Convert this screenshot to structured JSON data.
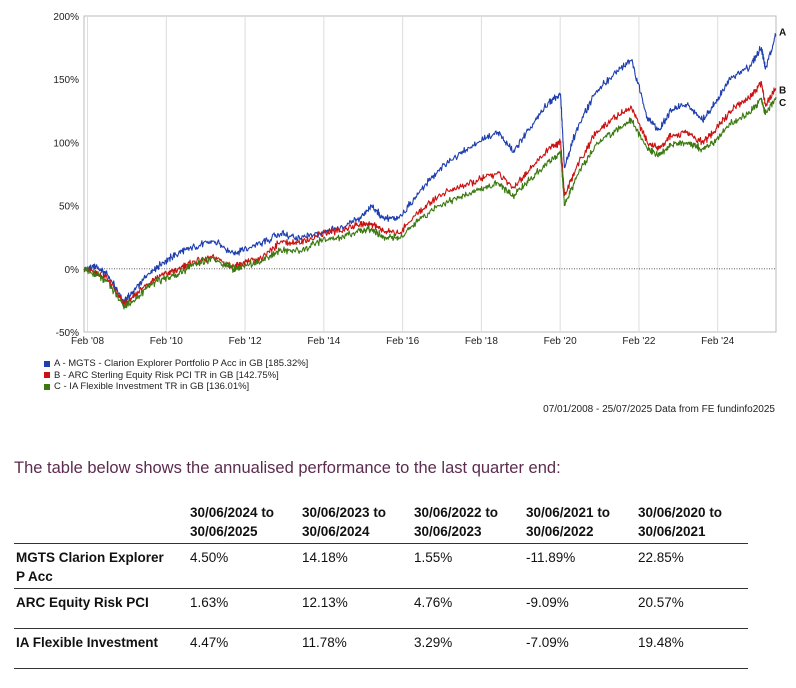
{
  "chart_data": {
    "type": "line",
    "y_tick_labels": [
      "200%",
      "150%",
      "100%",
      "50%",
      "0%",
      "-50%"
    ],
    "y_ticks": [
      200,
      150,
      100,
      50,
      0,
      -50
    ],
    "ylim": [
      -50,
      200
    ],
    "x_tick_labels": [
      "Feb '08",
      "Feb '10",
      "Feb '12",
      "Feb '14",
      "Feb '16",
      "Feb '18",
      "Feb '20",
      "Feb '22",
      "Feb '24"
    ],
    "x_ticks": [
      2008.09,
      2010.09,
      2012.09,
      2014.09,
      2016.09,
      2018.09,
      2020.09,
      2022.09,
      2024.09
    ],
    "xlim": [
      2008.0,
      2025.57
    ],
    "grid": "vertical",
    "series": [
      {
        "name": "A - MGTS - Clarion Explorer Portfolio P Acc in GB [185.32%]",
        "end_label": "A",
        "color": "#1f3fb0",
        "x": [
          2008.0,
          2008.3,
          2008.6,
          2009.0,
          2009.2,
          2009.6,
          2010.0,
          2010.4,
          2010.8,
          2011.3,
          2011.8,
          2012.0,
          2012.5,
          2013.0,
          2013.5,
          2014.0,
          2014.5,
          2015.0,
          2015.3,
          2015.6,
          2016.0,
          2016.5,
          2017.0,
          2017.5,
          2018.0,
          2018.5,
          2018.9,
          2019.3,
          2019.8,
          2020.1,
          2020.2,
          2020.5,
          2021.0,
          2021.5,
          2021.9,
          2022.3,
          2022.6,
          2022.9,
          2023.3,
          2023.7,
          2024.0,
          2024.4,
          2024.9,
          2025.2,
          2025.3,
          2025.57
        ],
        "y": [
          0,
          2,
          -5,
          -25,
          -20,
          -5,
          5,
          12,
          18,
          22,
          12,
          15,
          20,
          28,
          24,
          28,
          32,
          40,
          50,
          40,
          40,
          60,
          78,
          90,
          100,
          108,
          92,
          110,
          132,
          138,
          80,
          110,
          140,
          155,
          165,
          120,
          110,
          125,
          130,
          118,
          130,
          150,
          160,
          175,
          158,
          185.32
        ]
      },
      {
        "name": "B - ARC Sterling Equity Risk PCI TR in GB [142.75%]",
        "end_label": "B",
        "color": "#cc1111",
        "x": [
          2008.0,
          2008.3,
          2008.6,
          2009.0,
          2009.2,
          2009.6,
          2010.0,
          2010.4,
          2010.8,
          2011.3,
          2011.8,
          2012.0,
          2012.5,
          2013.0,
          2013.5,
          2014.0,
          2014.5,
          2015.0,
          2015.3,
          2015.6,
          2016.0,
          2016.5,
          2017.0,
          2017.5,
          2018.0,
          2018.5,
          2018.9,
          2019.3,
          2019.8,
          2020.1,
          2020.2,
          2020.5,
          2021.0,
          2021.5,
          2021.9,
          2022.3,
          2022.6,
          2022.9,
          2023.3,
          2023.7,
          2024.0,
          2024.4,
          2024.9,
          2025.2,
          2025.3,
          2025.57
        ],
        "y": [
          0,
          -3,
          -8,
          -28,
          -24,
          -12,
          -5,
          0,
          6,
          9,
          2,
          4,
          8,
          22,
          20,
          28,
          30,
          35,
          36,
          30,
          28,
          45,
          58,
          64,
          70,
          76,
          64,
          78,
          95,
          100,
          58,
          80,
          108,
          120,
          128,
          100,
          95,
          105,
          108,
          100,
          108,
          125,
          135,
          148,
          130,
          142.75
        ]
      },
      {
        "name": "C - IA Flexible Investment TR in GB [136.01%]",
        "end_label": "C",
        "color": "#3a7a10",
        "x": [
          2008.0,
          2008.3,
          2008.6,
          2009.0,
          2009.2,
          2009.6,
          2010.0,
          2010.4,
          2010.8,
          2011.3,
          2011.8,
          2012.0,
          2012.5,
          2013.0,
          2013.5,
          2014.0,
          2014.5,
          2015.0,
          2015.3,
          2015.6,
          2016.0,
          2016.5,
          2017.0,
          2017.5,
          2018.0,
          2018.5,
          2018.9,
          2019.3,
          2019.8,
          2020.1,
          2020.2,
          2020.5,
          2021.0,
          2021.5,
          2021.9,
          2022.3,
          2022.6,
          2022.9,
          2023.3,
          2023.7,
          2024.0,
          2024.4,
          2024.9,
          2025.2,
          2025.3,
          2025.57
        ],
        "y": [
          0,
          -4,
          -10,
          -30,
          -27,
          -15,
          -8,
          -4,
          4,
          8,
          0,
          2,
          5,
          15,
          14,
          22,
          25,
          30,
          32,
          25,
          24,
          38,
          50,
          56,
          62,
          68,
          58,
          70,
          85,
          92,
          50,
          72,
          98,
          110,
          118,
          95,
          90,
          98,
          100,
          95,
          100,
          115,
          123,
          135,
          122,
          136.01
        ]
      }
    ],
    "baseline_style": "dotted",
    "baseline_value": 0
  },
  "source_note": "07/01/2008 - 25/07/2025 Data from FE fundinfo2025",
  "intro_text": "The table below shows the annualised performance to the last quarter end:",
  "table": {
    "columns": [
      [
        "30/06/2024 to",
        "30/06/2025"
      ],
      [
        "30/06/2023 to",
        "30/06/2024"
      ],
      [
        "30/06/2022 to",
        "30/06/2023"
      ],
      [
        "30/06/2021 to",
        "30/06/2022"
      ],
      [
        "30/06/2020 to",
        "30/06/2021"
      ]
    ],
    "rows": [
      {
        "name_lines": [
          "MGTS Clarion Explorer",
          "P Acc"
        ],
        "values": [
          "4.50%",
          "14.18%",
          "1.55%",
          "-11.89%",
          "22.85%"
        ]
      },
      {
        "name_lines": [
          "ARC Equity Risk PCI"
        ],
        "values": [
          "1.63%",
          "12.13%",
          "4.76%",
          "-9.09%",
          "20.57%"
        ]
      },
      {
        "name_lines": [
          "IA Flexible Investment"
        ],
        "values": [
          "4.47%",
          "11.78%",
          "3.29%",
          "-7.09%",
          "19.48%"
        ]
      }
    ]
  }
}
